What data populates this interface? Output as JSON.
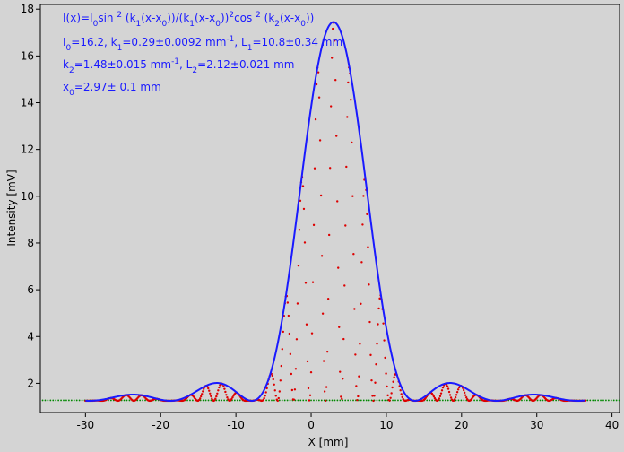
{
  "chart_data": {
    "type": "scatter",
    "title": "",
    "xlabel": "X [mm]",
    "ylabel": "Intensity [mV]",
    "xlim": [
      -36,
      41
    ],
    "ylim": [
      0.75,
      18.2
    ],
    "xticks": [
      -30,
      -20,
      -10,
      0,
      10,
      20,
      30,
      40
    ],
    "yticks": [
      2,
      4,
      6,
      8,
      10,
      12,
      14,
      16,
      18
    ],
    "grid": false,
    "colors": {
      "background": "#d4d4d4",
      "fit_curve": "#1a1aff",
      "measured_points": "#dd0000",
      "baseline_points": "#008800",
      "annotation_text": "#1a1aff"
    },
    "fit_model": {
      "I0": 16.2,
      "k1": 0.29,
      "k2": 1.48,
      "x0": 2.97,
      "offset": 1.25,
      "x_range": [
        -30,
        36.5
      ]
    },
    "annotations": [
      {
        "name": "formula",
        "parts": [
          {
            "t": "I(x)=I"
          },
          {
            "t": "0",
            "sub": true
          },
          {
            "t": "sin "
          },
          {
            "t": "2",
            "sup": true
          },
          {
            "t": " (k"
          },
          {
            "t": "1",
            "sub": true
          },
          {
            "t": "(x-x"
          },
          {
            "t": "0",
            "sub": true
          },
          {
            "t": "))/(k"
          },
          {
            "t": "1",
            "sub": true
          },
          {
            "t": "(x-x"
          },
          {
            "t": "0",
            "sub": true
          },
          {
            "t": "))"
          },
          {
            "t": "2",
            "sup": true
          },
          {
            "t": "cos "
          },
          {
            "t": "2",
            "sup": true
          },
          {
            "t": " (k"
          },
          {
            "t": "2",
            "sub": true
          },
          {
            "t": "(x-x"
          },
          {
            "t": "0",
            "sub": true
          },
          {
            "t": "))"
          }
        ]
      },
      {
        "name": "params-line-1",
        "parts": [
          {
            "t": "I"
          },
          {
            "t": "0",
            "sub": true
          },
          {
            "t": "=16.2,  k"
          },
          {
            "t": "1",
            "sub": true
          },
          {
            "t": "=0.29±0.0092 mm"
          },
          {
            "t": "-1",
            "sup": true
          },
          {
            "t": ",   L"
          },
          {
            "t": "1",
            "sub": true
          },
          {
            "t": "=10.8±0.34 mm"
          }
        ]
      },
      {
        "name": "params-line-2",
        "parts": [
          {
            "t": "k"
          },
          {
            "t": "2",
            "sub": true
          },
          {
            "t": "=1.48±0.015 mm"
          },
          {
            "t": "-1",
            "sup": true
          },
          {
            "t": ",   L"
          },
          {
            "t": "2",
            "sub": true
          },
          {
            "t": "=2.12±0.021 mm"
          }
        ]
      },
      {
        "name": "params-line-3",
        "parts": [
          {
            "t": "x"
          },
          {
            "t": "0",
            "sub": true
          },
          {
            "t": "=2.97±  0.1 mm"
          }
        ]
      }
    ]
  }
}
